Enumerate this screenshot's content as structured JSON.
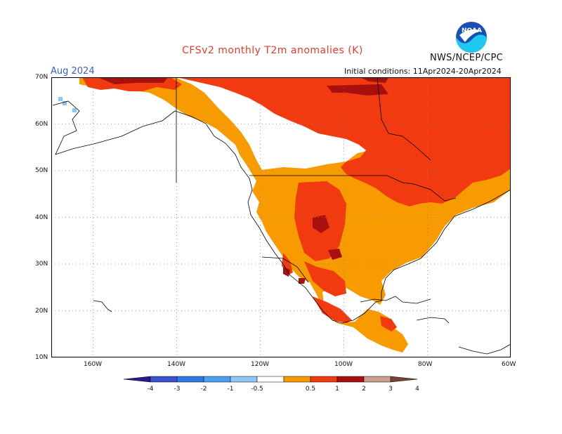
{
  "header": {
    "title": "CFSv2 monthly T2m anomalies (K)",
    "org": "NWS/NCEP/CPC",
    "month": "Aug 2024",
    "initial_conditions": "Initial conditions: 11Apr2024-20Apr2024",
    "logo_text": "NOAA"
  },
  "map": {
    "lat_labels": [
      "70N",
      "60N",
      "50N",
      "40N",
      "30N",
      "20N",
      "10N"
    ],
    "lon_labels": [
      "160W",
      "140W",
      "120W",
      "100W",
      "80W",
      "60W"
    ],
    "lat_range": [
      10,
      70
    ],
    "lon_range": [
      -170,
      -60
    ],
    "grid": "dotted"
  },
  "colorbar": {
    "tick_labels": [
      "-4",
      "-3",
      "-2",
      "-1",
      "-0.5",
      "0.5",
      "1",
      "2",
      "3",
      "4"
    ],
    "colors": [
      "#2a1a8f",
      "#3a52cc",
      "#2f7ae0",
      "#4aa0f0",
      "#8ec6f6",
      "#ffffff",
      "#f79b00",
      "#f23a10",
      "#a81010",
      "#c8a08e",
      "#7a4538"
    ]
  },
  "colors": {
    "bin_0_5_1": "#f79b00",
    "bin_1_2": "#f23a10",
    "bin_2_3": "#a81010",
    "bin_3_4": "#c8a08e",
    "neg_light": "#8ec6f6",
    "title": "#e83a2a",
    "month": "#3b5bd6"
  }
}
